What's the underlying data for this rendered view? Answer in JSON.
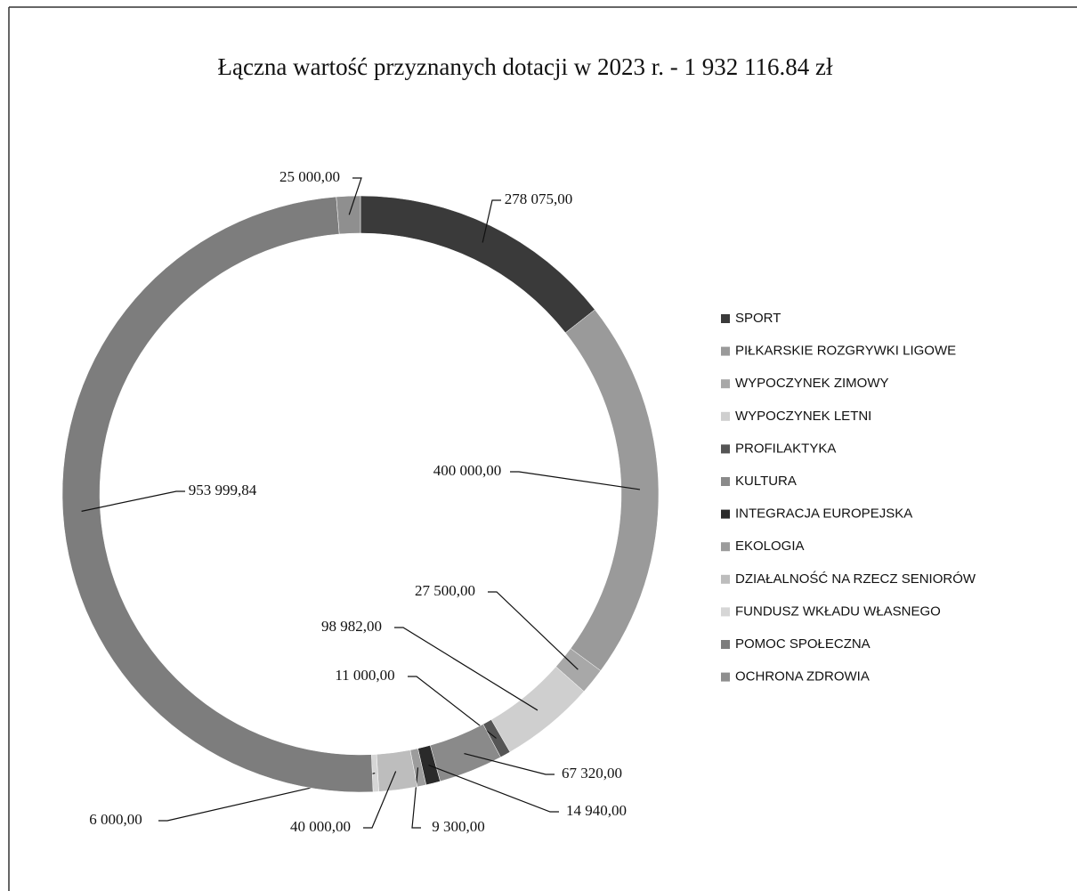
{
  "chart_data": {
    "type": "donut",
    "title": "Łączna wartość przyznanych dotacji w 2023 r. - 1 932 116.84 zł",
    "categories": [
      "SPORT",
      "PIŁKARSKIE ROZGRYWKI LIGOWE",
      "WYPOCZYNEK ZIMOWY",
      "WYPOCZYNEK LETNI",
      "PROFILAKTYKA",
      "KULTURA",
      "INTEGRACJA EUROPEJSKA",
      "EKOLOGIA",
      "DZIAŁALNOŚĆ NA RZECZ SENIORÓW",
      "FUNDUSZ WKŁADU WŁASNEGO",
      "POMOC SPOŁECZNA",
      "OCHRONA ZDROWIA"
    ],
    "values": [
      278075,
      400000,
      27500,
      98982,
      11000,
      67320,
      14940,
      9300,
      40000,
      6000,
      953999.84,
      25000
    ],
    "value_labels": [
      "278 075,00",
      "400 000,00",
      "27 500,00",
      "98 982,00",
      "11 000,00",
      "67 320,00",
      "14 940,00",
      "9 300,00",
      "40 000,00",
      "6 000,00",
      "953 999,84",
      "25 000,00"
    ],
    "colors": [
      "#3a3a3a",
      "#9a9a9a",
      "#a8a8a8",
      "#cfcfcf",
      "#555555",
      "#8a8a8a",
      "#2a2a2a",
      "#9c9c9c",
      "#bdbdbd",
      "#d6d6d6",
      "#7d7d7d",
      "#8f8f8f"
    ],
    "legend": "right"
  }
}
